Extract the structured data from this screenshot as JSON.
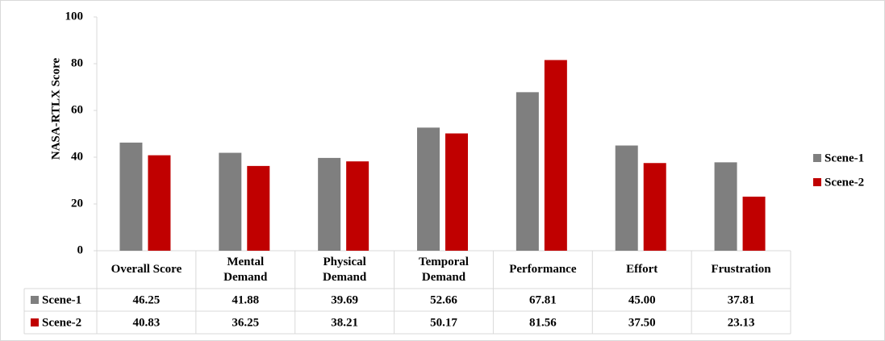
{
  "chart_data": {
    "type": "bar",
    "y_label": "NASA-RTLX Score",
    "categories": [
      "Overall Score",
      "Mental Demand",
      "Physical Demand",
      "Temporal Demand",
      "Performance",
      "Effort",
      "Frustration"
    ],
    "series": [
      {
        "name": "Scene-1",
        "color": "#7f7f7f",
        "values": [
          46.25,
          41.88,
          39.69,
          52.66,
          67.81,
          45.0,
          37.81
        ],
        "value_labels": [
          "46.25",
          "41.88",
          "39.69",
          "52.66",
          "67.81",
          "45.00",
          "37.81"
        ]
      },
      {
        "name": "Scene-2",
        "color": "#c00000",
        "values": [
          40.83,
          36.25,
          38.21,
          50.17,
          81.56,
          37.5,
          23.13
        ],
        "value_labels": [
          "40.83",
          "36.25",
          "38.21",
          "50.17",
          "81.56",
          "37.50",
          "23.13"
        ]
      }
    ],
    "ylim": [
      0,
      100
    ],
    "yticks": [
      0,
      20,
      40,
      60,
      80,
      100
    ],
    "grid": false,
    "legend": "right"
  }
}
